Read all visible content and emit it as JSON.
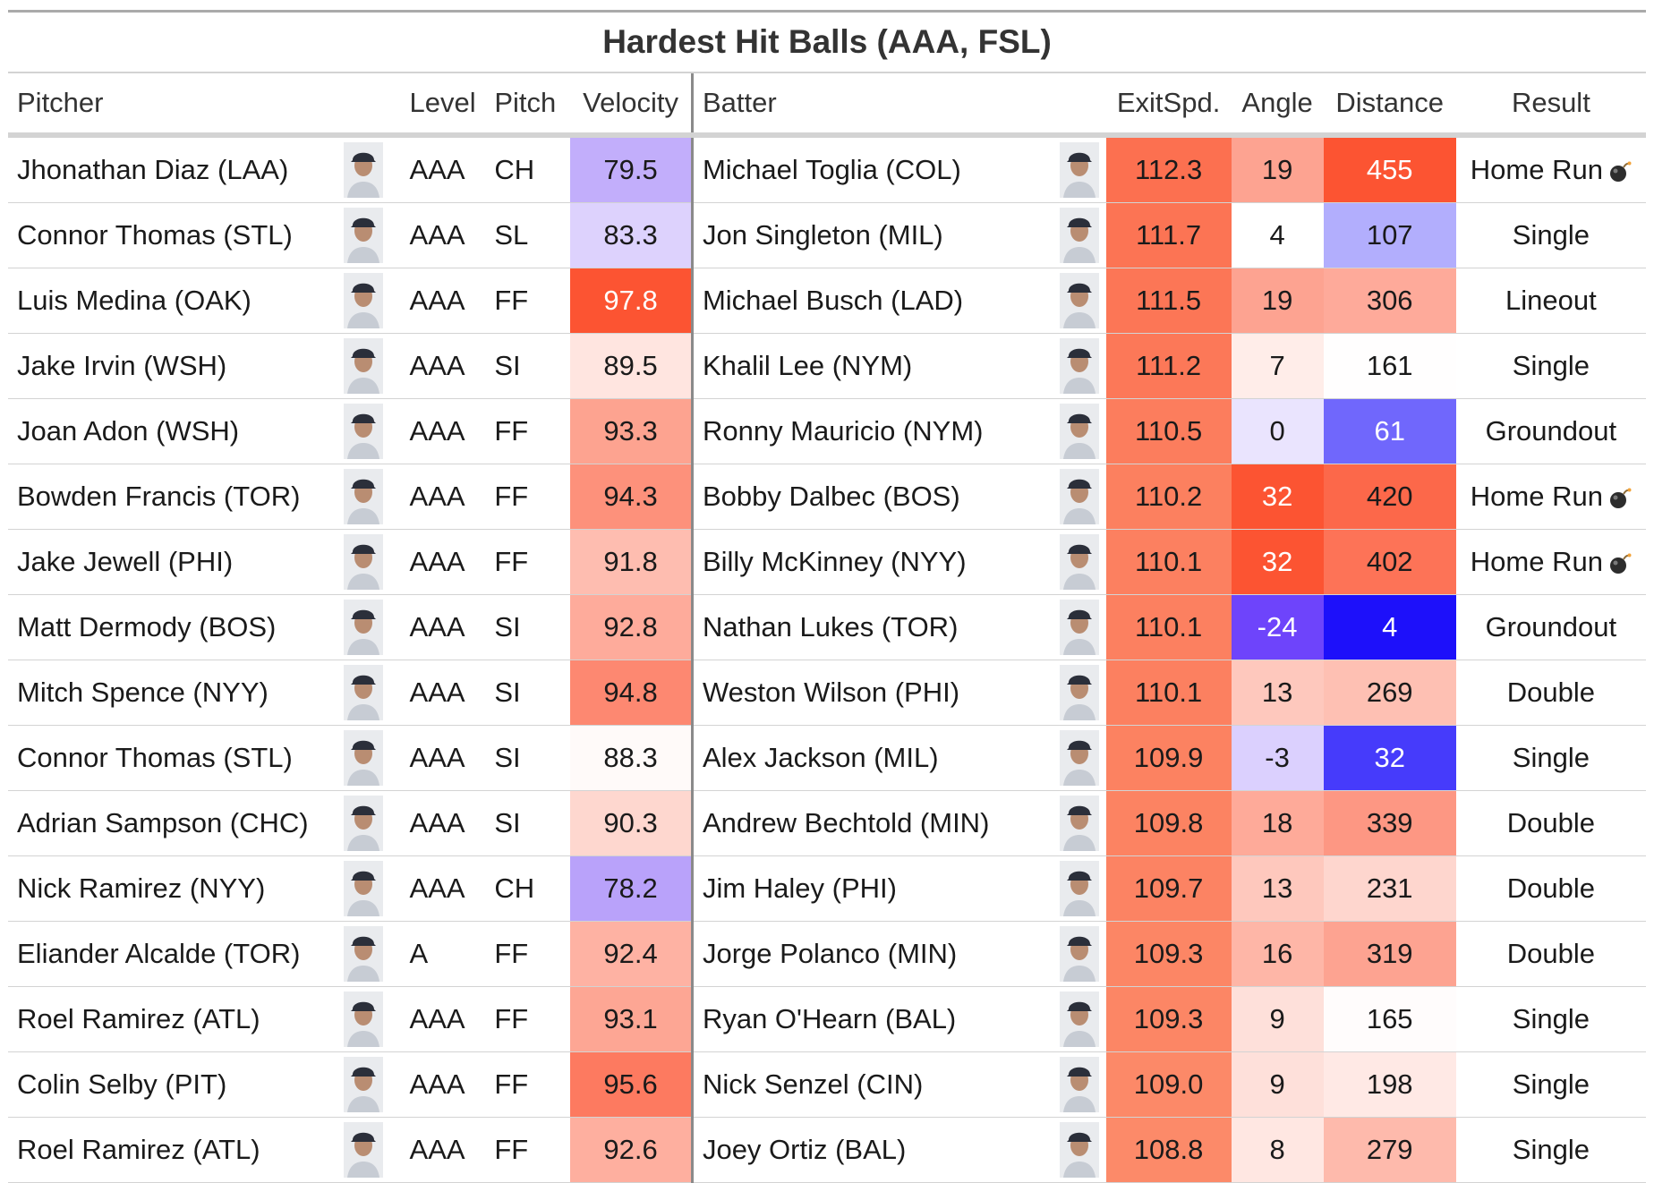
{
  "chart_data": {
    "type": "table",
    "title": "Hardest Hit Balls (AAA, FSL)",
    "columns": {
      "pitcher": "Pitcher",
      "level": "Level",
      "pitch": "Pitch",
      "velocity": "Velocity",
      "batter": "Batter",
      "exit_speed": "ExitSpd.",
      "angle": "Angle",
      "distance": "Distance",
      "result": "Result"
    },
    "rows": [
      {
        "pitcher": "Jhonathan Diaz (LAA)",
        "level": "AAA",
        "pitch": "CH",
        "velocity": "79.5",
        "batter": "Michael Toglia (COL)",
        "exit_speed": "112.3",
        "angle": "19",
        "distance": "455",
        "result": "Home Run",
        "is_hr": true
      },
      {
        "pitcher": "Connor Thomas (STL)",
        "level": "AAA",
        "pitch": "SL",
        "velocity": "83.3",
        "batter": "Jon Singleton (MIL)",
        "exit_speed": "111.7",
        "angle": "4",
        "distance": "107",
        "result": "Single",
        "is_hr": false
      },
      {
        "pitcher": "Luis Medina (OAK)",
        "level": "AAA",
        "pitch": "FF",
        "velocity": "97.8",
        "batter": "Michael Busch (LAD)",
        "exit_speed": "111.5",
        "angle": "19",
        "distance": "306",
        "result": "Lineout",
        "is_hr": false
      },
      {
        "pitcher": "Jake Irvin (WSH)",
        "level": "AAA",
        "pitch": "SI",
        "velocity": "89.5",
        "batter": "Khalil Lee (NYM)",
        "exit_speed": "111.2",
        "angle": "7",
        "distance": "161",
        "result": "Single",
        "is_hr": false
      },
      {
        "pitcher": "Joan Adon (WSH)",
        "level": "AAA",
        "pitch": "FF",
        "velocity": "93.3",
        "batter": "Ronny Mauricio (NYM)",
        "exit_speed": "110.5",
        "angle": "0",
        "distance": "61",
        "result": "Groundout",
        "is_hr": false
      },
      {
        "pitcher": "Bowden Francis (TOR)",
        "level": "AAA",
        "pitch": "FF",
        "velocity": "94.3",
        "batter": "Bobby Dalbec (BOS)",
        "exit_speed": "110.2",
        "angle": "32",
        "distance": "420",
        "result": "Home Run",
        "is_hr": true
      },
      {
        "pitcher": "Jake Jewell (PHI)",
        "level": "AAA",
        "pitch": "FF",
        "velocity": "91.8",
        "batter": "Billy McKinney (NYY)",
        "exit_speed": "110.1",
        "angle": "32",
        "distance": "402",
        "result": "Home Run",
        "is_hr": true
      },
      {
        "pitcher": "Matt Dermody (BOS)",
        "level": "AAA",
        "pitch": "SI",
        "velocity": "92.8",
        "batter": "Nathan Lukes (TOR)",
        "exit_speed": "110.1",
        "angle": "-24",
        "distance": "4",
        "result": "Groundout",
        "is_hr": false
      },
      {
        "pitcher": "Mitch Spence (NYY)",
        "level": "AAA",
        "pitch": "SI",
        "velocity": "94.8",
        "batter": "Weston Wilson (PHI)",
        "exit_speed": "110.1",
        "angle": "13",
        "distance": "269",
        "result": "Double",
        "is_hr": false
      },
      {
        "pitcher": "Connor Thomas (STL)",
        "level": "AAA",
        "pitch": "SI",
        "velocity": "88.3",
        "batter": "Alex Jackson (MIL)",
        "exit_speed": "109.9",
        "angle": "-3",
        "distance": "32",
        "result": "Single",
        "is_hr": false
      },
      {
        "pitcher": "Adrian Sampson (CHC)",
        "level": "AAA",
        "pitch": "SI",
        "velocity": "90.3",
        "batter": "Andrew Bechtold (MIN)",
        "exit_speed": "109.8",
        "angle": "18",
        "distance": "339",
        "result": "Double",
        "is_hr": false
      },
      {
        "pitcher": "Nick Ramirez (NYY)",
        "level": "AAA",
        "pitch": "CH",
        "velocity": "78.2",
        "batter": "Jim Haley (PHI)",
        "exit_speed": "109.7",
        "angle": "13",
        "distance": "231",
        "result": "Double",
        "is_hr": false
      },
      {
        "pitcher": "Eliander Alcalde (TOR)",
        "level": "A",
        "pitch": "FF",
        "velocity": "92.4",
        "batter": "Jorge Polanco (MIN)",
        "exit_speed": "109.3",
        "angle": "16",
        "distance": "319",
        "result": "Double",
        "is_hr": false
      },
      {
        "pitcher": "Roel Ramirez (ATL)",
        "level": "AAA",
        "pitch": "FF",
        "velocity": "93.1",
        "batter": "Ryan O'Hearn (BAL)",
        "exit_speed": "109.3",
        "angle": "9",
        "distance": "165",
        "result": "Single",
        "is_hr": false
      },
      {
        "pitcher": "Colin Selby (PIT)",
        "level": "AAA",
        "pitch": "FF",
        "velocity": "95.6",
        "batter": "Nick Senzel (CIN)",
        "exit_speed": "109.0",
        "angle": "9",
        "distance": "198",
        "result": "Single",
        "is_hr": false
      },
      {
        "pitcher": "Roel Ramirez (ATL)",
        "level": "AAA",
        "pitch": "FF",
        "velocity": "92.6",
        "batter": "Joey Ortiz (BAL)",
        "exit_speed": "108.8",
        "angle": "8",
        "distance": "279",
        "result": "Single",
        "is_hr": false
      }
    ],
    "color_scales": {
      "velocity": {
        "domain": [
          78.2,
          88.0,
          97.8
        ],
        "colors": [
          "#b9a2fa",
          "#ffffff",
          "#fc5432"
        ]
      },
      "exit_speed": {
        "domain": [
          108.8,
          112.3
        ],
        "colors": [
          "#fc8a69",
          "#fc7050"
        ]
      },
      "angle": {
        "domain": [
          -24,
          4,
          32
        ],
        "colors": [
          "#6e44fb",
          "#ffffff",
          "#fc5432"
        ]
      },
      "distance": {
        "domain": [
          4,
          160,
          455
        ],
        "colors": [
          "#1d10fa",
          "#ffffff",
          "#fc5432"
        ]
      }
    },
    "icons": {
      "headshot": "player-headshot-icon",
      "home_run": "bomb-icon"
    }
  }
}
